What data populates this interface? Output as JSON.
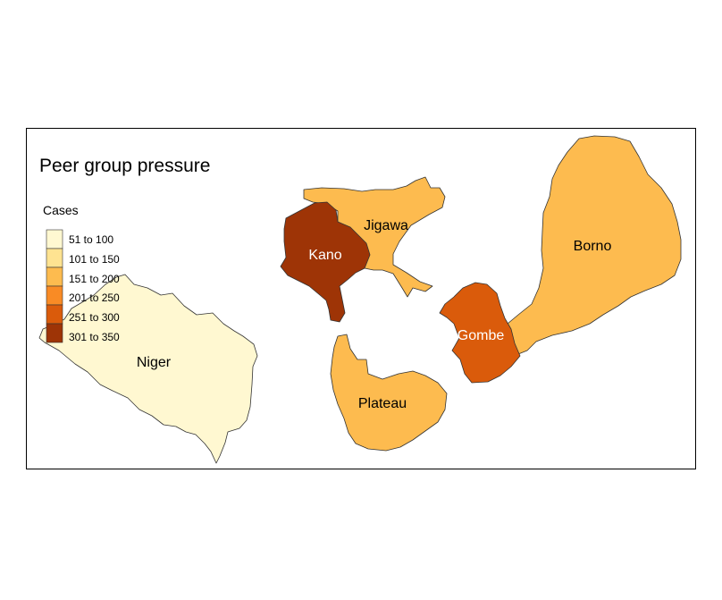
{
  "map": {
    "title": "Peer group pressure",
    "legend_title": "Cases",
    "legend": [
      {
        "label": "51 to 100",
        "color": "#FFF8D1"
      },
      {
        "label": "101 to 150",
        "color": "#FEE391"
      },
      {
        "label": "151 to 200",
        "color": "#FDBB4F"
      },
      {
        "label": "201 to 250",
        "color": "#F98B25"
      },
      {
        "label": "251 to 300",
        "color": "#DA5B0B"
      },
      {
        "label": "301 to 350",
        "color": "#9E3406"
      }
    ],
    "states": [
      {
        "name": "Niger",
        "color": "#FFF8D1"
      },
      {
        "name": "Jigawa",
        "color": "#FDBB4F"
      },
      {
        "name": "Kano",
        "color": "#9E3406"
      },
      {
        "name": "Borno",
        "color": "#FDBB4F"
      },
      {
        "name": "Gombe",
        "color": "#DA5B0B"
      },
      {
        "name": "Plateau",
        "color": "#FDBB4F"
      }
    ]
  }
}
